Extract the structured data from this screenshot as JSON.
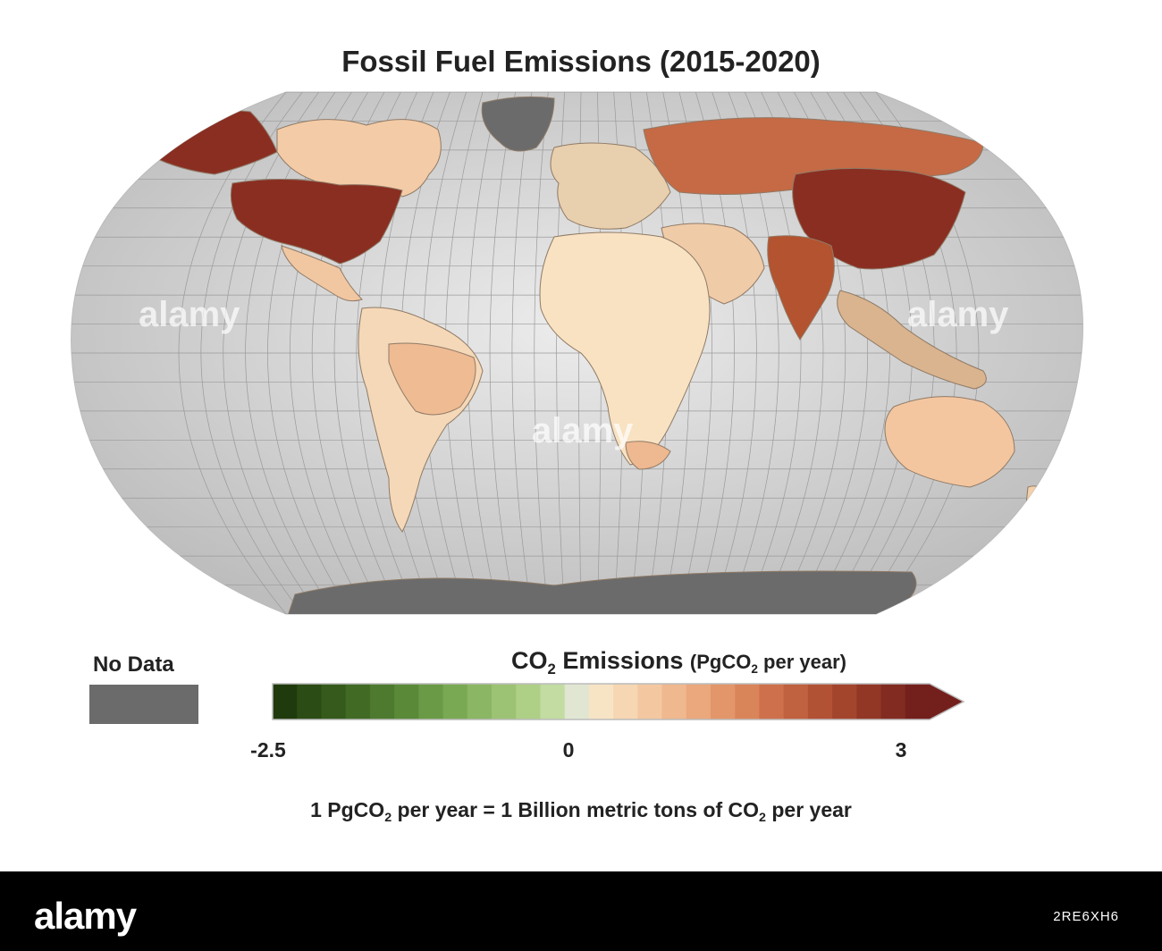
{
  "title": "Fossil Fuel Emissions (2015-2020)",
  "legend": {
    "no_data_label": "No Data",
    "no_data_color": "#6b6b6b",
    "title_co": "CO",
    "title_sub": "2",
    "title_rest": " Emissions ",
    "unit_open": "(PgCO",
    "unit_sub": "2",
    "unit_close": " per year)",
    "ticks": [
      "-2.5",
      "0",
      "3"
    ],
    "min": -2.5,
    "max": 3,
    "colors": [
      "#1f3a0c",
      "#2b4c14",
      "#355a1b",
      "#416a24",
      "#4d7a2e",
      "#5a8a38",
      "#6a9a45",
      "#7aa953",
      "#8bb663",
      "#9cc273",
      "#aecf86",
      "#c3dca2",
      "#e0e6d2",
      "#f7e4c5",
      "#f6d6b3",
      "#f3c8a1",
      "#efb88e",
      "#eaa87c",
      "#e3966a",
      "#da845a",
      "#cd704b",
      "#c0613f",
      "#b25235",
      "#a3452d",
      "#923725",
      "#822b21",
      "#73201c"
    ]
  },
  "conversion": {
    "part1": "1 PgCO",
    "sub1": "2",
    "part2": " per year = 1 Billion metric tons of CO",
    "sub2": "2",
    "part3": " per year"
  },
  "chart_data": {
    "type": "choropleth",
    "title": "Fossil Fuel Emissions (2015-2020)",
    "color_scale": {
      "min": -2.5,
      "max": 3,
      "midpoint": 0,
      "unit": "PgCO2 per year"
    },
    "regions": [
      {
        "name": "United States",
        "color": "#8a2e22"
      },
      {
        "name": "Alaska",
        "color": "#8a2e22"
      },
      {
        "name": "China",
        "color": "#8a2e22"
      },
      {
        "name": "India",
        "color": "#b4532f"
      },
      {
        "name": "Russia",
        "color": "#c56a45"
      },
      {
        "name": "Canada",
        "color": "#f3cba6"
      },
      {
        "name": "Brazil",
        "color": "#efbb93"
      },
      {
        "name": "Australia",
        "color": "#f3c6a0"
      },
      {
        "name": "Africa",
        "color": "#f8e2c2"
      },
      {
        "name": "Greenland",
        "color": "#6b6b6b"
      },
      {
        "name": "Antarctica",
        "color": "#6b6b6b"
      }
    ]
  },
  "footer": {
    "logo": "alamy",
    "image_id": "2RE6XH6",
    "watermark": "alamy"
  }
}
